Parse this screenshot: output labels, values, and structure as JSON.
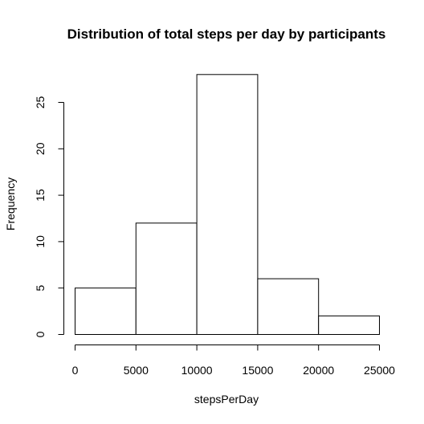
{
  "chart_data": {
    "type": "bar",
    "subtype": "histogram",
    "title": "Distribution of total steps per day by participants",
    "xlabel": "stepsPerDay",
    "ylabel": "Frequency",
    "bins": [
      {
        "from": 0,
        "to": 5000,
        "value": 5
      },
      {
        "from": 5000,
        "to": 10000,
        "value": 12
      },
      {
        "from": 10000,
        "to": 15000,
        "value": 28
      },
      {
        "from": 15000,
        "to": 20000,
        "value": 6
      },
      {
        "from": 20000,
        "to": 25000,
        "value": 2
      }
    ],
    "x_ticks": [
      "0",
      "5000",
      "10000",
      "15000",
      "20000",
      "25000"
    ],
    "y_ticks": [
      "0",
      "5",
      "10",
      "15",
      "20",
      "25"
    ],
    "xlim": [
      0,
      25000
    ],
    "ylim": [
      0,
      28
    ],
    "bar_fill": "#ffffff",
    "bar_stroke": "#000000",
    "grid": false,
    "legend": "none"
  }
}
